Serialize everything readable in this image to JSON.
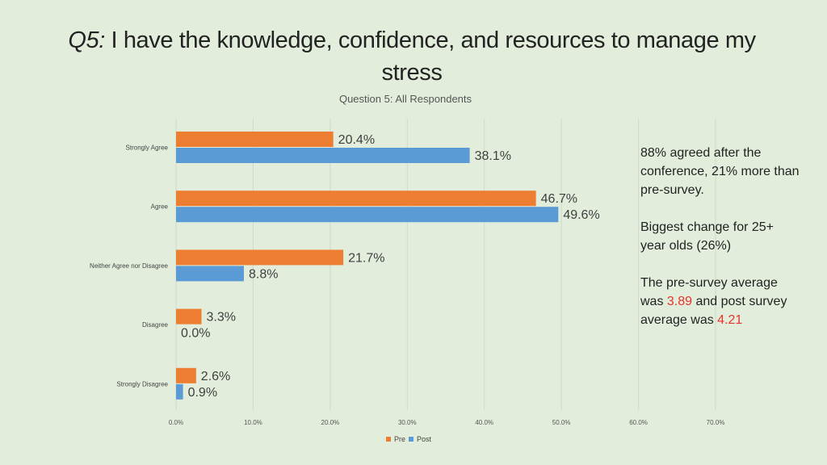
{
  "title_prefix": "Q5:",
  "title_rest": " I have the knowledge, confidence, and resources to manage my stress",
  "colors": {
    "pre": "#ed7d31",
    "post": "#5b9bd5",
    "grid": "#d0d8cc",
    "accent": "#e8332a"
  },
  "chart_data": {
    "type": "bar",
    "orientation": "horizontal",
    "title": "Question 5: All Respondents",
    "categories": [
      "Strongly Agree",
      "Agree",
      "Neither Agree nor Disagree",
      "Disagree",
      "Strongly Disagree"
    ],
    "series": [
      {
        "name": "Pre",
        "values": [
          20.4,
          46.7,
          21.7,
          3.3,
          2.6
        ],
        "labels": [
          "20.4%",
          "46.7%",
          "21.7%",
          "3.3%",
          "2.6%"
        ]
      },
      {
        "name": "Post",
        "values": [
          38.1,
          49.6,
          8.8,
          0.0,
          0.9
        ],
        "labels": [
          "38.1%",
          "49.6%",
          "8.8%",
          "0.0%",
          "0.9%"
        ]
      }
    ],
    "xlim": [
      0,
      70
    ],
    "xticks": [
      "0.0%",
      "10.0%",
      "20.0%",
      "30.0%",
      "40.0%",
      "50.0%",
      "60.0%",
      "70.0%"
    ],
    "grid": true,
    "legend": "bottom"
  },
  "side_text": {
    "p1": "88% agreed after the conference, 21% more than pre-survey.",
    "p2": "Biggest change for 25+ year olds (26%)",
    "p3_a": "The pre-survey average was ",
    "p3_pre": "3.89",
    "p3_b": " and post survey average was ",
    "p3_post": "4.21"
  }
}
